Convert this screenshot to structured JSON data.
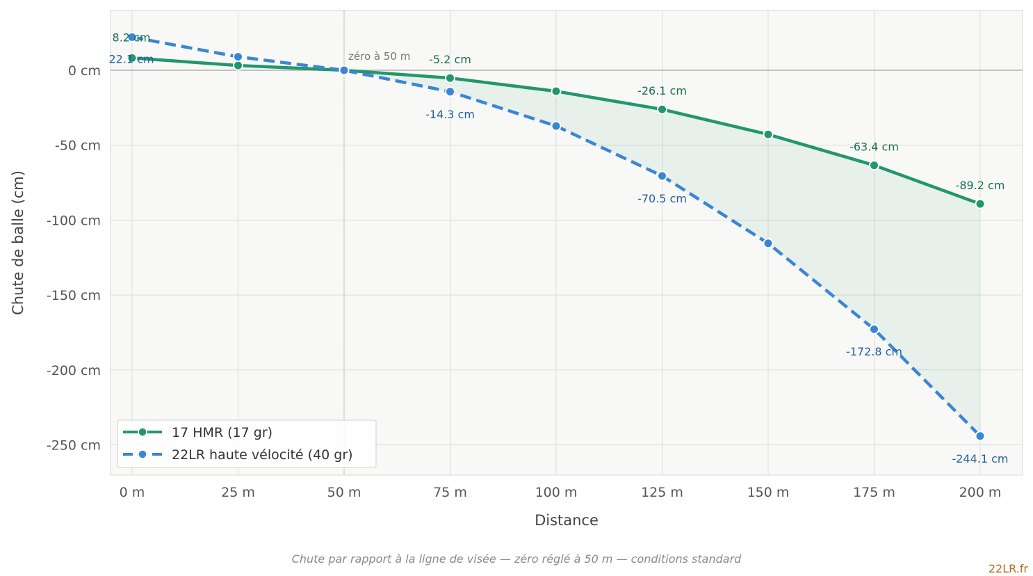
{
  "chart_data": {
    "type": "line",
    "xlabel": "Distance",
    "ylabel": "Chute de balle (cm)",
    "x": [
      0,
      25,
      50,
      75,
      100,
      125,
      150,
      175,
      200
    ],
    "x_tick_labels": [
      "0 m",
      "25 m",
      "50 m",
      "75 m",
      "100 m",
      "125 m",
      "150 m",
      "175 m",
      "200 m"
    ],
    "y_ticks": [
      0,
      -50,
      -100,
      -150,
      -200,
      -250
    ],
    "y_tick_labels": [
      "0 cm",
      "-50 cm",
      "-100 cm",
      "-150 cm",
      "-200 cm",
      "-250 cm"
    ],
    "xlim": [
      -5,
      210
    ],
    "ylim": [
      -270,
      40
    ],
    "grid": true,
    "legend_position": "bottom-left",
    "zero_annotation": "zéro à 50 m",
    "zero_distance": 50,
    "fill_between_series": true,
    "series": [
      {
        "name": "17 HMR (17 gr)",
        "color": "#22976b",
        "label_color": "#17704f",
        "dashed": false,
        "values": [
          8.2,
          3.2,
          0,
          -5.2,
          -14.0,
          -26.1,
          -42.8,
          -63.4,
          -89.2
        ],
        "point_labels": [
          "8.2 cm",
          "",
          "",
          "-5.2 cm",
          "",
          "-26.1 cm",
          "",
          "-63.4 cm",
          "-89.2 cm"
        ]
      },
      {
        "name": "22LR haute vélocité (40 gr)",
        "color": "#3a86d4",
        "label_color": "#1f5f9f",
        "dashed": true,
        "values": [
          22.1,
          9.0,
          0,
          -14.3,
          -37.2,
          -70.5,
          -115.5,
          -172.8,
          -244.1
        ],
        "point_labels": [
          "22.1 cm",
          "",
          "",
          "-14.3 cm",
          "",
          "-70.5 cm",
          "",
          "-172.8 cm",
          "-244.1 cm"
        ]
      }
    ],
    "caption": "Chute par rapport à la ligne de visée — zéro réglé à 50 m — conditions standard",
    "brand": "22LR.fr"
  }
}
